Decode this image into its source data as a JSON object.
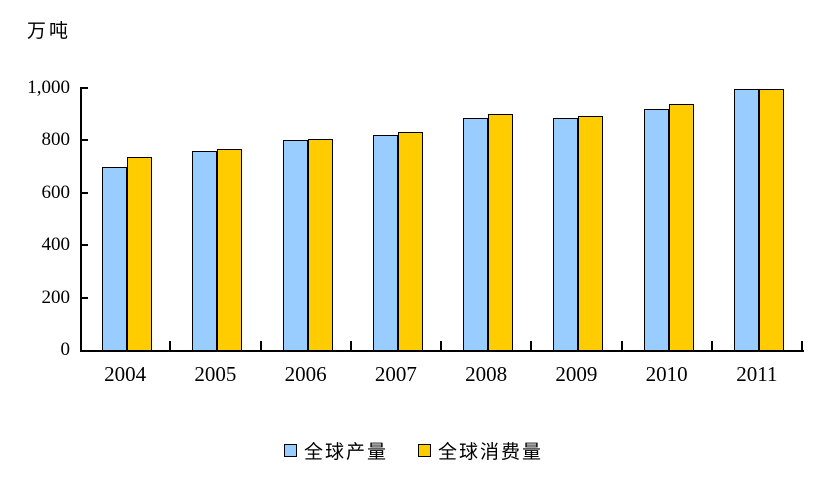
{
  "chart_data": {
    "type": "bar",
    "title": "",
    "ylabel": "万吨",
    "xlabel": "",
    "categories": [
      "2004",
      "2005",
      "2006",
      "2007",
      "2008",
      "2009",
      "2010",
      "2011"
    ],
    "series": [
      {
        "name": "全球产量",
        "color": "#99CCFF",
        "values": [
          697,
          760,
          801,
          822,
          887,
          885,
          921,
          998
        ]
      },
      {
        "name": "全球消费量",
        "color": "#FFCC00",
        "values": [
          736,
          768,
          806,
          834,
          901,
          893,
          938,
          997
        ]
      }
    ],
    "ylim": [
      0,
      1000
    ],
    "ytick_step": 200,
    "ytick_labels": [
      "0",
      "200",
      "400",
      "600",
      "800",
      "1,000"
    ],
    "grid": false,
    "legend_position": "bottom",
    "bar_border_color": "#000000",
    "axis_color": "#000000"
  }
}
